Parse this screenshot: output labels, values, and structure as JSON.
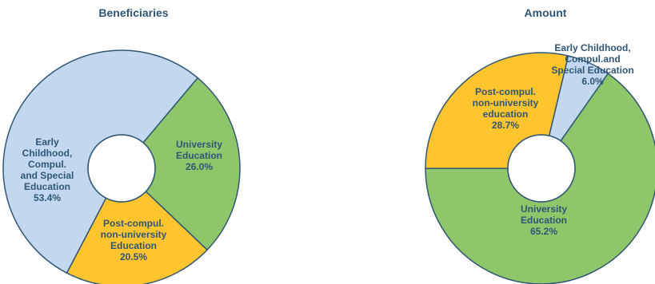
{
  "chart_data": [
    {
      "type": "pie",
      "title": "Beneficiaries",
      "slices": [
        {
          "label": "University Education",
          "value": 26.0,
          "color": "#8fc66a",
          "value_text": "26.0%",
          "lines": [
            "University",
            "Education",
            "26.0%"
          ]
        },
        {
          "label": "Post-compul. non-university Education",
          "value": 20.5,
          "color": "#ffc42e",
          "value_text": "20.5%",
          "lines": [
            "Post-compul.",
            "non-university",
            "Education",
            "20.5%"
          ]
        },
        {
          "label": "Early Childhood, Compul. and Special Education",
          "value": 53.4,
          "color": "#c3d8ef",
          "value_text": "53.4%",
          "lines": [
            "Early",
            "Childhood,",
            "Compul.",
            "and Special",
            "Education",
            "53.4%"
          ]
        }
      ]
    },
    {
      "type": "pie",
      "title": "Amount",
      "slices": [
        {
          "label": "University Education",
          "value": 65.2,
          "color": "#8fc66a",
          "value_text": "65.2%",
          "lines": [
            "University",
            "Education",
            "65.2%"
          ]
        },
        {
          "label": "Post-compul. non-university education",
          "value": 28.7,
          "color": "#ffc42e",
          "value_text": "28.7%",
          "lines": [
            "Post-compul.",
            "non-university",
            "education",
            "28.7%"
          ]
        },
        {
          "label": "Early Childhood, Compul.and Special Education",
          "value": 6.0,
          "color": "#c3d8ef",
          "value_text": "6.0%",
          "lines": [
            "Early Childhood,",
            "Compul.and",
            "Special Education",
            "6.0%"
          ]
        }
      ]
    }
  ],
  "colors": {
    "stroke": "#2f5675",
    "text": "#2f5675",
    "background": "#ffffff"
  }
}
